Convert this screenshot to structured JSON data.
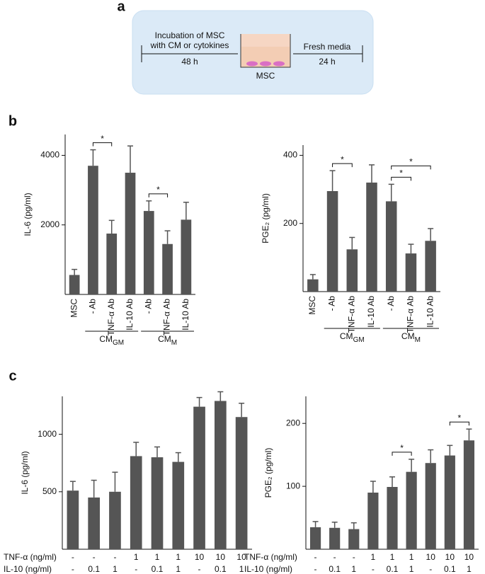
{
  "panel_labels": [
    "a",
    "b",
    "c"
  ],
  "diagram": {
    "step1": [
      "Incubation of MSC",
      "with CM or cytokines"
    ],
    "time1": "48 h",
    "cell": "MSC",
    "step2": "Fresh media",
    "time2": "24 h"
  },
  "chart_data": [
    {
      "type": "bar",
      "ylabel": "IL-6 (pg/ml)",
      "categories": [
        "MSC",
        "- Ab",
        "TNF-α Ab",
        "IL-10 Ab",
        "- Ab",
        "TNF-α Ab",
        "IL-10 Ab"
      ],
      "values": [
        560,
        3700,
        1750,
        3500,
        2400,
        1450,
        2150
      ],
      "errors": [
        160,
        460,
        380,
        770,
        290,
        380,
        500
      ],
      "color": "#555555",
      "ylim": [
        0,
        4600
      ],
      "yticks": [
        2000,
        4000
      ],
      "groups": [
        {
          "label": "CM",
          "subscript": "GM",
          "between": [
            1,
            3
          ]
        },
        {
          "label": "CM",
          "subscript": "M",
          "between": [
            4,
            6
          ]
        }
      ],
      "significance": [
        {
          "label": "*",
          "between": [
            1,
            2
          ]
        },
        {
          "label": "*",
          "between": [
            4,
            5
          ]
        }
      ]
    },
    {
      "type": "bar",
      "ylabel": "PGE₂ (pg/ml)",
      "categories": [
        "MSC",
        "- Ab",
        "TNF-α Ab",
        "IL-10 Ab",
        "- Ab",
        "TNF-α Ab",
        "IL-10 Ab"
      ],
      "values": [
        36,
        295,
        124,
        320,
        265,
        112,
        149
      ],
      "errors": [
        14,
        60,
        35,
        52,
        50,
        27,
        36
      ],
      "color": "#555555",
      "ylim": [
        0,
        430
      ],
      "yticks": [
        200,
        400
      ],
      "groups": [
        {
          "label": "CM",
          "subscript": "GM",
          "between": [
            1,
            3
          ]
        },
        {
          "label": "CM",
          "subscript": "M",
          "between": [
            4,
            6
          ]
        }
      ],
      "significance": [
        {
          "label": "*",
          "between": [
            1,
            2
          ]
        },
        {
          "label": "*",
          "between": [
            4,
            5
          ]
        },
        {
          "label": "*",
          "between": [
            4,
            6
          ]
        }
      ]
    },
    {
      "type": "bar",
      "ylabel": "IL-6 (pg/ml)",
      "values": [
        510,
        450,
        500,
        810,
        800,
        760,
        1240,
        1290,
        1150
      ],
      "errors": [
        80,
        150,
        170,
        120,
        90,
        80,
        80,
        80,
        120
      ],
      "color": "#555555",
      "ylim": [
        0,
        1330
      ],
      "yticks": [
        500,
        1000
      ],
      "conditions": [
        {
          "name": "TNF-α (ng/ml)",
          "values": [
            "-",
            "-",
            "-",
            "1",
            "1",
            "1",
            "10",
            "10",
            "10"
          ]
        },
        {
          "name": "IL-10 (ng/ml)",
          "values": [
            "-",
            "0.1",
            "1",
            "-",
            "0.1",
            "1",
            "-",
            "0.1",
            "1"
          ]
        }
      ]
    },
    {
      "type": "bar",
      "ylabel": "PGE₂ (pg/ml)",
      "values": [
        35,
        34,
        32,
        90,
        99,
        123,
        137,
        149,
        173
      ],
      "errors": [
        9,
        9,
        10,
        18,
        16,
        20,
        21,
        16,
        18
      ],
      "color": "#555555",
      "ylim": [
        0,
        243
      ],
      "yticks": [
        100,
        200
      ],
      "conditions": [
        {
          "name": "TNF-α (ng/ml)",
          "values": [
            "-",
            "-",
            "-",
            "1",
            "1",
            "1",
            "10",
            "10",
            "10"
          ]
        },
        {
          "name": "IL-10 (ng/ml)",
          "values": [
            "-",
            "0.1",
            "1",
            "-",
            "0.1",
            "1",
            "-",
            "0.1",
            "1"
          ]
        }
      ],
      "significance": [
        {
          "label": "*",
          "between": [
            4,
            5
          ]
        },
        {
          "label": "*",
          "between": [
            7,
            8
          ]
        }
      ]
    }
  ]
}
